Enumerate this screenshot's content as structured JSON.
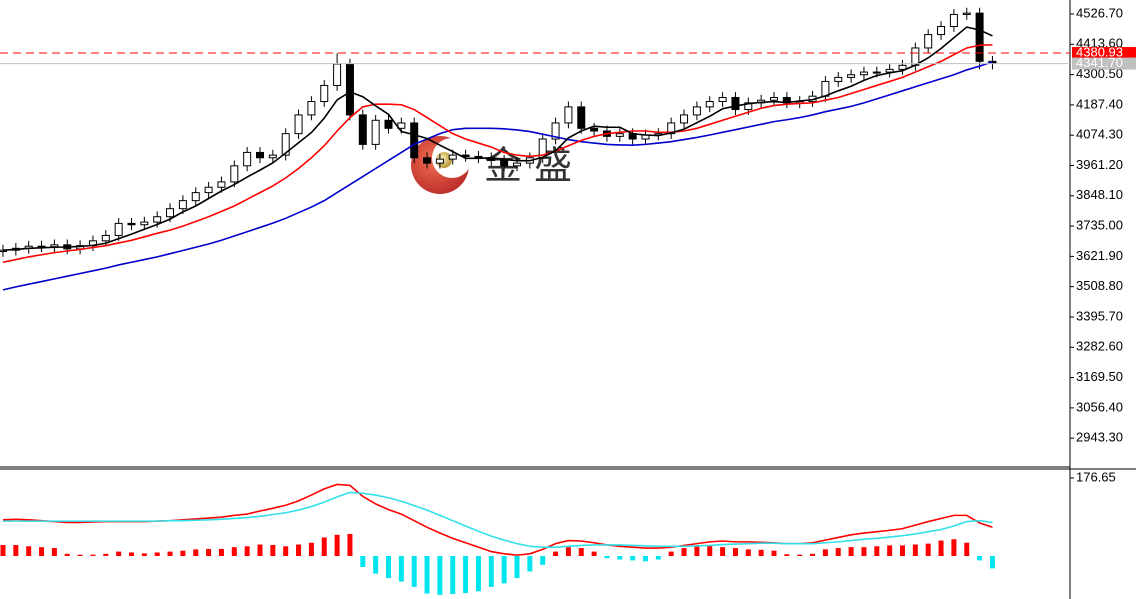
{
  "watermark": "金 盛",
  "chart_data": [
    {
      "type": "candlestick",
      "categories": [
        null,
        null,
        null,
        null,
        null,
        null,
        null,
        null,
        null,
        null,
        null,
        null,
        null,
        null,
        null,
        null,
        null,
        null,
        null,
        null,
        null,
        null,
        null,
        null,
        null,
        null,
        null,
        null,
        null,
        null,
        null,
        null,
        null,
        null,
        null,
        null,
        null,
        null,
        null,
        null,
        null,
        null,
        null,
        null,
        null,
        null,
        null,
        null,
        null,
        null,
        null,
        null,
        null,
        null,
        null,
        null,
        null,
        null,
        null,
        null,
        null,
        null,
        null,
        null,
        null,
        null,
        null,
        null,
        null,
        null,
        null,
        null,
        null,
        null,
        null,
        null,
        null,
        null
      ],
      "open": [
        3640,
        3645,
        3652,
        3660,
        3658,
        3665,
        3650,
        3662,
        3680,
        3700,
        3745,
        3740,
        3750,
        3770,
        3800,
        3830,
        3860,
        3880,
        3900,
        3960,
        4010,
        3990,
        4000,
        4080,
        4150,
        4200,
        4260,
        4340,
        4150,
        4040,
        4130,
        4100,
        4120,
        3990,
        3970,
        3985,
        4000,
        3995,
        3990,
        3980,
        3960,
        3970,
        3990,
        4060,
        4120,
        4180,
        4100,
        4090,
        4070,
        4080,
        4060,
        4075,
        4080,
        4120,
        4150,
        4180,
        4200,
        4215,
        4170,
        4195,
        4205,
        4215,
        4195,
        4200,
        4220,
        4275,
        4290,
        4300,
        4310,
        4310,
        4320,
        4335,
        4400,
        4450,
        4480,
        4525,
        4530,
        4350
      ],
      "high": [
        3665,
        3672,
        3680,
        3680,
        3685,
        3685,
        3682,
        3700,
        3720,
        3765,
        3765,
        3770,
        3790,
        3820,
        3850,
        3880,
        3900,
        3920,
        3980,
        4030,
        4030,
        4020,
        4100,
        4170,
        4220,
        4280,
        4380,
        4360,
        4170,
        4150,
        4150,
        4140,
        4140,
        4010,
        4005,
        4020,
        4020,
        4015,
        4010,
        4000,
        3990,
        4010,
        4080,
        4140,
        4200,
        4200,
        4120,
        4110,
        4100,
        4100,
        4095,
        4100,
        4140,
        4170,
        4200,
        4220,
        4235,
        4235,
        4215,
        4225,
        4235,
        4235,
        4220,
        4240,
        4295,
        4310,
        4320,
        4330,
        4330,
        4340,
        4355,
        4420,
        4470,
        4500,
        4545,
        4550,
        4550,
        4370
      ],
      "low": [
        3620,
        3625,
        3632,
        3638,
        3638,
        3630,
        3630,
        3642,
        3660,
        3680,
        3720,
        3720,
        3730,
        3750,
        3780,
        3810,
        3840,
        3860,
        3880,
        3940,
        3970,
        3970,
        3980,
        4060,
        4130,
        4180,
        4240,
        4130,
        4020,
        4020,
        4080,
        4080,
        3970,
        3950,
        3950,
        3965,
        3975,
        3970,
        3960,
        3940,
        3940,
        3950,
        3970,
        4040,
        4100,
        4080,
        4070,
        4050,
        4050,
        4040,
        4040,
        4055,
        4060,
        4100,
        4130,
        4160,
        4180,
        4150,
        4150,
        4175,
        4185,
        4175,
        4175,
        4180,
        4200,
        4255,
        4270,
        4280,
        4290,
        4290,
        4300,
        4315,
        4380,
        4430,
        4460,
        4505,
        4320,
        4320
      ],
      "close": [
        3645,
        3652,
        3660,
        3658,
        3665,
        3650,
        3662,
        3680,
        3700,
        3745,
        3740,
        3750,
        3770,
        3800,
        3830,
        3860,
        3880,
        3900,
        3960,
        4010,
        3990,
        4000,
        4080,
        4150,
        4200,
        4260,
        4340,
        4150,
        4040,
        4130,
        4100,
        4120,
        3990,
        3970,
        3985,
        4000,
        3995,
        3990,
        3980,
        3960,
        3970,
        3990,
        4060,
        4120,
        4180,
        4100,
        4090,
        4070,
        4080,
        4060,
        4075,
        4080,
        4120,
        4150,
        4180,
        4200,
        4215,
        4170,
        4195,
        4205,
        4215,
        4195,
        4200,
        4220,
        4275,
        4290,
        4300,
        4310,
        4310,
        4320,
        4335,
        4400,
        4450,
        4480,
        4525,
        4530,
        4350,
        4342
      ],
      "up_color": "#ffffff",
      "down_color": "#000000",
      "candle_outline": "#000000",
      "lines": [
        {
          "color": "#0000cc",
          "values": [
            3497,
            3508,
            3518,
            3528,
            3538,
            3548,
            3558,
            3568,
            3578,
            3590,
            3600,
            3610,
            3620,
            3632,
            3644,
            3656,
            3668,
            3682,
            3698,
            3714,
            3730,
            3746,
            3764,
            3785,
            3806,
            3830,
            3860,
            3890,
            3920,
            3950,
            3980,
            4010,
            4040,
            4060,
            4080,
            4095,
            4100,
            4100,
            4100,
            4098,
            4094,
            4088,
            4078,
            4068,
            4058,
            4050,
            4045,
            4040,
            4038,
            4037,
            4040,
            4045,
            4050,
            4058,
            4066,
            4075,
            4085,
            4095,
            4105,
            4115,
            4125,
            4132,
            4140,
            4150,
            4162,
            4172,
            4182,
            4195,
            4210,
            4225,
            4240,
            4255,
            4270,
            4285,
            4300,
            4318,
            4332,
            4348
          ]
        },
        {
          "color": "#ff0000",
          "values": [
            3600,
            3610,
            3620,
            3628,
            3636,
            3642,
            3648,
            3655,
            3662,
            3672,
            3682,
            3695,
            3708,
            3720,
            3735,
            3752,
            3770,
            3790,
            3810,
            3835,
            3860,
            3885,
            3915,
            3950,
            3990,
            4035,
            4090,
            4140,
            4180,
            4190,
            4190,
            4188,
            4170,
            4140,
            4110,
            4080,
            4060,
            4045,
            4030,
            4010,
            4000,
            3995,
            4000,
            4015,
            4035,
            4055,
            4070,
            4080,
            4085,
            4090,
            4090,
            4085,
            4085,
            4090,
            4100,
            4115,
            4130,
            4145,
            4160,
            4175,
            4185,
            4190,
            4193,
            4195,
            4205,
            4215,
            4230,
            4245,
            4260,
            4275,
            4290,
            4310,
            4330,
            4350,
            4375,
            4400,
            4410,
            4412
          ]
        },
        {
          "color": "#000000",
          "values": [
            3645,
            3648,
            3652,
            3654,
            3656,
            3657,
            3659,
            3663,
            3671,
            3688,
            3705,
            3723,
            3741,
            3761,
            3788,
            3810,
            3838,
            3866,
            3890,
            3918,
            3944,
            3971,
            4008,
            4046,
            4084,
            4138,
            4206,
            4236,
            4218,
            4184,
            4152,
            4088,
            4076,
            4062,
            4037,
            4013,
            3988,
            3988,
            3990,
            3984,
            3979,
            3979,
            3992,
            4016,
            4064,
            4090,
            4108,
            4104,
            4104,
            4080,
            4075,
            4073,
            4083,
            4097,
            4121,
            4145,
            4173,
            4183,
            4192,
            4197,
            4200,
            4196,
            4202,
            4207,
            4221,
            4240,
            4257,
            4279,
            4297,
            4307,
            4315,
            4336,
            4363,
            4398,
            4438,
            4478,
            4467,
            4445
          ]
        }
      ],
      "levels": [
        {
          "value": 4380.93,
          "label": "4380.93",
          "color": "#ff0000",
          "dashed": true
        },
        {
          "value": 4341.7,
          "label": "4341.70",
          "color": "#c0c0c0",
          "dashed": false
        }
      ],
      "ylim": [
        2835.7,
        4579.0
      ],
      "yticks": [
        {
          "value": 4526.7,
          "label": "4526.70"
        },
        {
          "value": 4413.6,
          "label": "4413.60"
        },
        {
          "value": 4300.5,
          "label": "4300.50"
        },
        {
          "value": 4187.4,
          "label": "4187.40"
        },
        {
          "value": 4074.3,
          "label": "4074.30"
        },
        {
          "value": 3961.2,
          "label": "3961.20"
        },
        {
          "value": 3848.1,
          "label": "3848.10"
        },
        {
          "value": 3735,
          "label": "3735.00"
        },
        {
          "value": 3621.9,
          "label": "3621.90"
        },
        {
          "value": 3508.8,
          "label": "3508.80"
        },
        {
          "value": 3395.7,
          "label": "3395.70"
        },
        {
          "value": 3282.6,
          "label": "3282.60"
        },
        {
          "value": 3169.5,
          "label": "3169.50"
        },
        {
          "value": 3056.4,
          "label": "3056.40"
        },
        {
          "value": 2943.3,
          "label": "2943.30"
        }
      ]
    },
    {
      "type": "macd",
      "histogram": [
        25,
        25,
        22,
        20,
        18,
        5,
        3,
        3,
        5,
        10,
        8,
        6,
        8,
        10,
        12,
        15,
        16,
        16,
        20,
        22,
        26,
        25,
        22,
        26,
        30,
        42,
        48,
        50,
        -25,
        -40,
        -50,
        -58,
        -70,
        -85,
        -88,
        -86,
        -84,
        -80,
        -70,
        -62,
        -50,
        -35,
        -20,
        10,
        20,
        18,
        10,
        -5,
        -8,
        -10,
        -12,
        -8,
        10,
        18,
        22,
        25,
        20,
        18,
        15,
        14,
        12,
        4,
        3,
        5,
        15,
        18,
        20,
        20,
        22,
        24,
        24,
        26,
        28,
        35,
        38,
        30,
        -10,
        -28
      ],
      "positive_color": "#ff0000",
      "negative_color": "#00e5ee",
      "lines": [
        {
          "color": "#ff0000",
          "values": [
            82,
            83,
            82,
            80,
            78,
            76,
            76,
            77,
            78,
            78,
            78,
            78,
            79,
            80,
            82,
            84,
            86,
            88,
            92,
            95,
            102,
            108,
            115,
            125,
            138,
            152,
            162,
            160,
            135,
            118,
            105,
            95,
            80,
            65,
            52,
            40,
            30,
            20,
            10,
            5,
            2,
            5,
            15,
            28,
            35,
            34,
            30,
            25,
            22,
            20,
            18,
            18,
            20,
            24,
            28,
            32,
            34,
            32,
            32,
            31,
            30,
            28,
            28,
            30,
            36,
            42,
            48,
            52,
            55,
            58,
            62,
            70,
            78,
            85,
            92,
            92,
            75,
            65
          ]
        },
        {
          "color": "#33e0e8",
          "values": [
            79,
            79,
            79,
            79,
            79,
            79,
            79,
            79,
            79,
            79,
            79,
            79,
            79,
            80,
            80,
            81,
            82,
            83,
            85,
            87,
            90,
            94,
            98,
            104,
            112,
            122,
            134,
            144,
            142,
            138,
            132,
            124,
            114,
            104,
            92,
            80,
            68,
            56,
            45,
            36,
            28,
            22,
            20,
            20,
            22,
            24,
            25,
            25,
            25,
            24,
            23,
            22,
            22,
            22,
            23,
            24,
            26,
            27,
            28,
            29,
            29,
            28,
            28,
            28,
            30,
            32,
            35,
            38,
            40,
            43,
            46,
            50,
            55,
            60,
            68,
            78,
            80,
            76
          ]
        }
      ],
      "ylim": [
        -97.4,
        194.8
      ],
      "yticks": [
        176.65
      ]
    }
  ]
}
